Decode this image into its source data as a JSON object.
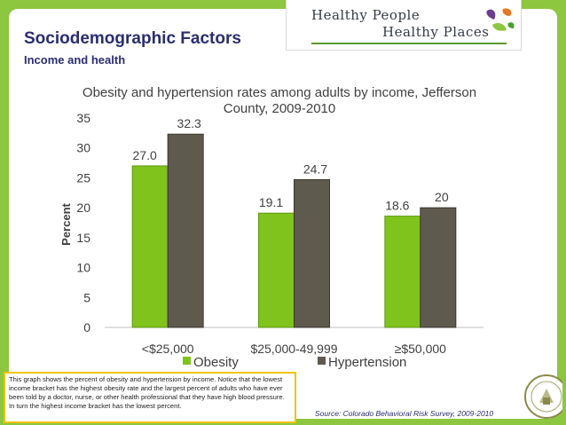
{
  "header": {
    "title": "Sociodemographic Factors",
    "subtitle": "Income and health"
  },
  "logo": {
    "line1": "Healthy People",
    "line2": "Healthy Places"
  },
  "note": "This graph shows the percent of obesity and hypertension by income. Notice that the lowest income bracket has the highest obesity rate and the largest percent of adults who have ever been told by a doctor, nurse, or other health professional that they have high blood pressure. In turn the highest income bracket has the lowest percent.",
  "source": "Source: Colorado Behavioral Risk Survey, 2009-2010",
  "colors": {
    "background_green": "#8dc63f",
    "obesity": "#7fc31c",
    "hypertension": "#5f5a4e",
    "title_navy": "#2b2d70",
    "note_border": "#f2c200"
  },
  "chart_data": {
    "type": "bar",
    "title": "Obesity and hypertension rates among adults by income, Jefferson County, 2009-2010",
    "xlabel": "",
    "ylabel": "Percent",
    "ylim": [
      0,
      35
    ],
    "yticks": [
      "0",
      "5",
      "10",
      "15",
      "20",
      "25",
      "30",
      "35"
    ],
    "categories": [
      "<$25,000",
      "$25,000-49,999",
      "≥$50,000"
    ],
    "series": [
      {
        "name": "Obesity",
        "values": [
          27.0,
          19.1,
          18.6
        ],
        "labels": [
          "27.0",
          "19.1",
          "18.6"
        ],
        "color": "#7fc31c"
      },
      {
        "name": "Hypertension",
        "values": [
          32.3,
          24.7,
          20
        ],
        "labels": [
          "32.3",
          "24.7",
          "20"
        ],
        "color": "#5f5a4e"
      }
    ],
    "grid": false,
    "legend_position": "bottom"
  }
}
